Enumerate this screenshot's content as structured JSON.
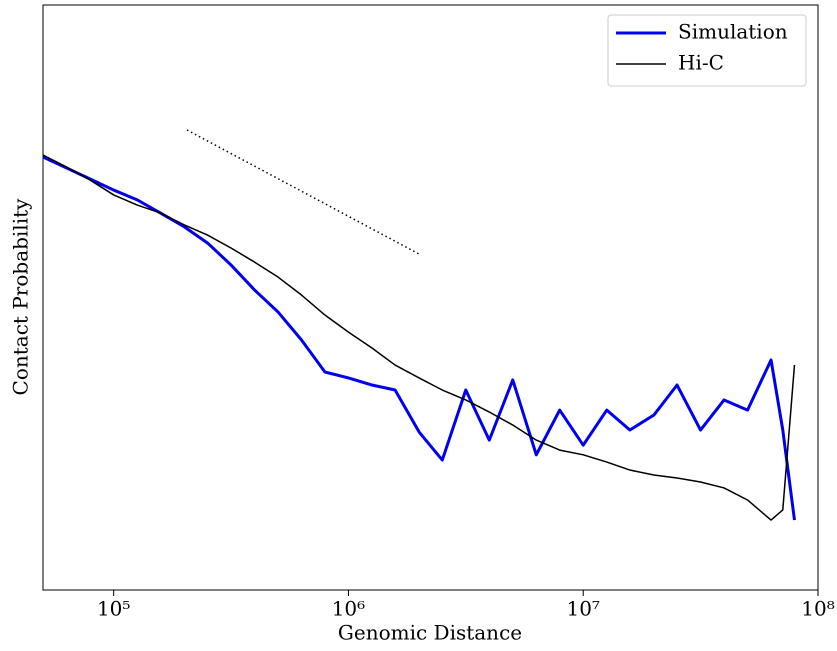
{
  "chart_data": {
    "type": "line",
    "x_label": "Genomic Distance",
    "y_label": "Contact Probability",
    "x_log": true,
    "y_log": true,
    "legend": "upper right",
    "xlim": [
      50000,
      100000000
    ],
    "ylim": [
      1e-05,
      1
    ],
    "xticks": [
      {
        "value": 100000,
        "label": "10⁵"
      },
      {
        "value": 1000000,
        "label": "10⁶"
      },
      {
        "value": 10000000,
        "label": "10⁷"
      },
      {
        "value": 100000000,
        "label": "10⁸"
      }
    ],
    "x": [
      50000,
      63100,
      79400,
      100000,
      126000,
      158000,
      200000,
      251000,
      316000,
      398000,
      501000,
      631000,
      794000,
      1000000,
      1260000,
      1580000,
      2000000,
      2510000,
      3160000,
      3980000,
      5010000,
      6310000,
      7940000,
      10000000,
      12600000,
      15800000,
      20000000,
      25100000,
      31600000,
      39800000,
      50100000,
      63100000,
      70800000,
      79400000
    ],
    "series": [
      {
        "name": "Simulation",
        "color": "#0000ee",
        "width": 3,
        "values": [
          0.0502,
          0.0404,
          0.0326,
          0.0262,
          0.0216,
          0.0167,
          0.0127,
          0.00925,
          0.006,
          0.00367,
          0.00238,
          0.00137,
          0.00073,
          0.000649,
          0.000565,
          0.000512,
          0.000224,
          0.000129,
          0.000512,
          0.000191,
          0.000624,
          0.000143,
          0.000345,
          0.000173,
          0.000345,
          0.000233,
          0.000313,
          0.000565,
          0.000233,
          0.000421,
          0.000345,
          0.000925,
          0.000233,
          3.96e-05
        ]
      },
      {
        "name": "Hi-C",
        "color": "#000000",
        "width": 1.5,
        "values": [
          0.0522,
          0.0412,
          0.0319,
          0.0238,
          0.0195,
          0.0167,
          0.0132,
          0.0108,
          0.00838,
          0.00635,
          0.00473,
          0.00332,
          0.00224,
          0.0016,
          0.00117,
          0.000837,
          0.000649,
          0.000512,
          0.000421,
          0.000332,
          0.000257,
          0.000191,
          0.000157,
          0.000143,
          0.000124,
          0.000106,
          9.61e-05,
          9.06e-05,
          8.38e-05,
          7.45e-05,
          5.88e-05,
          3.96e-05,
          4.83e-05,
          0.000837
        ]
      }
    ]
  }
}
